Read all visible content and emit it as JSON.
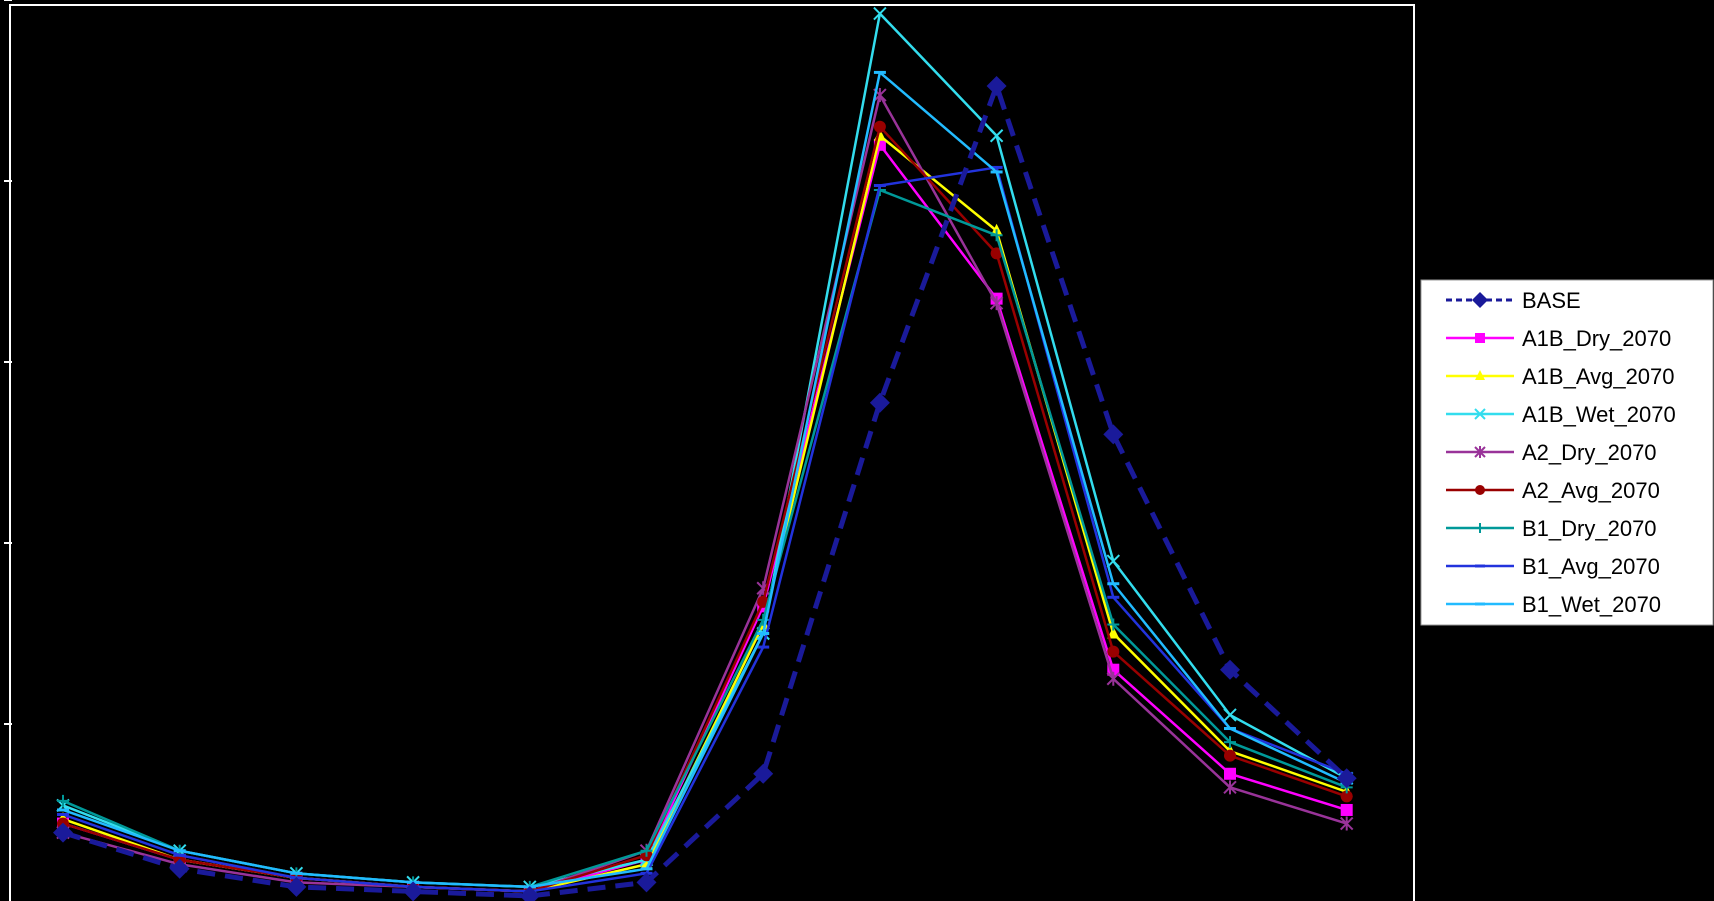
{
  "chart_data": {
    "type": "line",
    "title": "",
    "xlabel": "",
    "ylabel": "",
    "x": [
      1,
      2,
      3,
      4,
      5,
      6,
      7,
      8,
      9,
      10,
      11,
      12
    ],
    "ylim": [
      0,
      100
    ],
    "grid": false,
    "legend_position": "right",
    "series": [
      {
        "name": "BASE",
        "color": "#1a1a9a",
        "marker": "diamond",
        "dash": true,
        "values": [
          8.0,
          4.0,
          2.0,
          1.5,
          1.0,
          2.5,
          14.5,
          55.5,
          90.5,
          52.0,
          26.0,
          14.0
        ]
      },
      {
        "name": "A1B_Dry_2070",
        "color": "#ff00ff",
        "marker": "square",
        "dash": false,
        "values": [
          9.0,
          5.0,
          3.0,
          2.0,
          1.5,
          5.0,
          33.0,
          84.0,
          67.0,
          26.0,
          14.5,
          10.5
        ]
      },
      {
        "name": "A1B_Avg_2070",
        "color": "#ffff00",
        "marker": "triangle",
        "dash": false,
        "values": [
          9.5,
          5.0,
          3.0,
          2.0,
          1.5,
          4.5,
          31.0,
          85.0,
          74.5,
          30.0,
          17.0,
          12.5
        ]
      },
      {
        "name": "A1B_Wet_2070",
        "color": "#33ddee",
        "marker": "x",
        "dash": false,
        "values": [
          11.0,
          6.0,
          3.5,
          2.5,
          2.0,
          5.0,
          30.0,
          98.5,
          85.0,
          38.0,
          21.0,
          14.0
        ]
      },
      {
        "name": "A2_Dry_2070",
        "color": "#993399",
        "marker": "star",
        "dash": false,
        "values": [
          8.0,
          4.5,
          2.5,
          2.0,
          1.5,
          6.0,
          35.0,
          89.5,
          66.5,
          25.0,
          13.0,
          9.0
        ]
      },
      {
        "name": "A2_Avg_2070",
        "color": "#990000",
        "marker": "circle",
        "dash": false,
        "values": [
          9.0,
          5.0,
          3.0,
          2.0,
          1.5,
          5.5,
          33.5,
          86.0,
          72.0,
          28.0,
          16.5,
          12.0
        ]
      },
      {
        "name": "B1_Dry_2070",
        "color": "#009999",
        "marker": "plus",
        "dash": false,
        "values": [
          11.5,
          6.0,
          3.5,
          2.5,
          2.0,
          6.0,
          31.5,
          79.0,
          74.0,
          31.0,
          18.0,
          13.0
        ]
      },
      {
        "name": "B1_Avg_2070",
        "color": "#2233dd",
        "marker": "bar",
        "dash": false,
        "values": [
          10.0,
          5.5,
          3.0,
          2.0,
          1.5,
          3.5,
          28.5,
          79.5,
          81.5,
          34.0,
          19.5,
          14.5
        ]
      },
      {
        "name": "B1_Wet_2070",
        "color": "#22bbff",
        "marker": "bar",
        "dash": false,
        "values": [
          10.5,
          6.0,
          3.5,
          2.5,
          2.0,
          4.0,
          30.0,
          92.0,
          81.0,
          35.5,
          19.5,
          13.5
        ]
      }
    ]
  }
}
